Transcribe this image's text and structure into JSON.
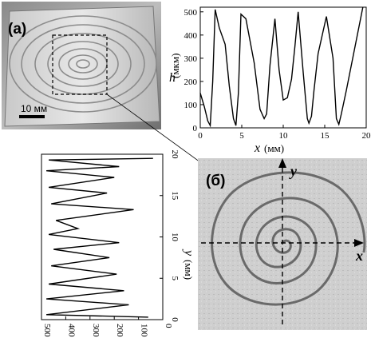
{
  "panels": {
    "a_label": "(а)",
    "b_label": "(б)",
    "scale_label": "10 мм",
    "axis_x_label": "x",
    "axis_y_label": "y"
  },
  "chart_data": [
    {
      "type": "line",
      "xlabel_var": "x",
      "xlabel_unit": "(мм)",
      "ylabel_var": "h",
      "ylabel_unit": "(мкм)",
      "xlim": [
        0,
        20
      ],
      "ylim": [
        0,
        520
      ],
      "xticks": [
        "0",
        "5",
        "10",
        "15",
        "20"
      ],
      "yticks": [
        "0",
        "100",
        "200",
        "300",
        "400",
        "500"
      ],
      "series": [
        {
          "x": [
            0,
            0.5,
            0.9,
            1.2,
            1.5,
            1.8,
            2.3,
            3.0,
            3.5,
            4.0,
            4.3,
            4.6,
            4.9,
            5.5,
            6.5,
            7.2,
            7.7,
            8.0,
            8.4,
            9.0,
            9.5,
            10.0,
            10.5,
            11.0,
            11.4,
            11.8,
            12.4,
            12.9,
            13.1,
            13.4,
            13.7,
            14.2,
            15.2,
            16.0,
            16.4,
            16.7,
            17.0,
            17.6,
            18.6,
            19.6
          ],
          "y": [
            150,
            90,
            30,
            10,
            200,
            510,
            430,
            360,
            180,
            40,
            10,
            150,
            490,
            470,
            280,
            80,
            40,
            60,
            270,
            470,
            250,
            120,
            130,
            210,
            350,
            500,
            240,
            40,
            20,
            50,
            160,
            320,
            480,
            300,
            40,
            15,
            60,
            160,
            340,
            520
          ]
        }
      ]
    },
    {
      "type": "line",
      "ylabel_var": "y",
      "ylabel_unit": "(мм)",
      "ylim": [
        0,
        20
      ],
      "xlim_reversed": [
        500,
        0
      ],
      "xticks": [
        "500",
        "400",
        "300",
        "200",
        "100",
        "0"
      ],
      "yticks": [
        "0",
        "5",
        "10",
        "15",
        "20"
      ],
      "series": [
        {
          "h": [
            60,
            480,
            140,
            480,
            160,
            470,
            190,
            460,
            220,
            450,
            180,
            470,
            350,
            440,
            120,
            460,
            230,
            470,
            200,
            480,
            180,
            470,
            40
          ],
          "y": [
            0.3,
            0.6,
            1.8,
            2.5,
            3.5,
            4.3,
            5.5,
            6.5,
            7.5,
            8.5,
            9.3,
            10.3,
            11.0,
            12.0,
            13.3,
            14.0,
            15.3,
            16.0,
            17.2,
            18.0,
            18.5,
            19.3,
            19.5
          ]
        }
      ]
    }
  ]
}
